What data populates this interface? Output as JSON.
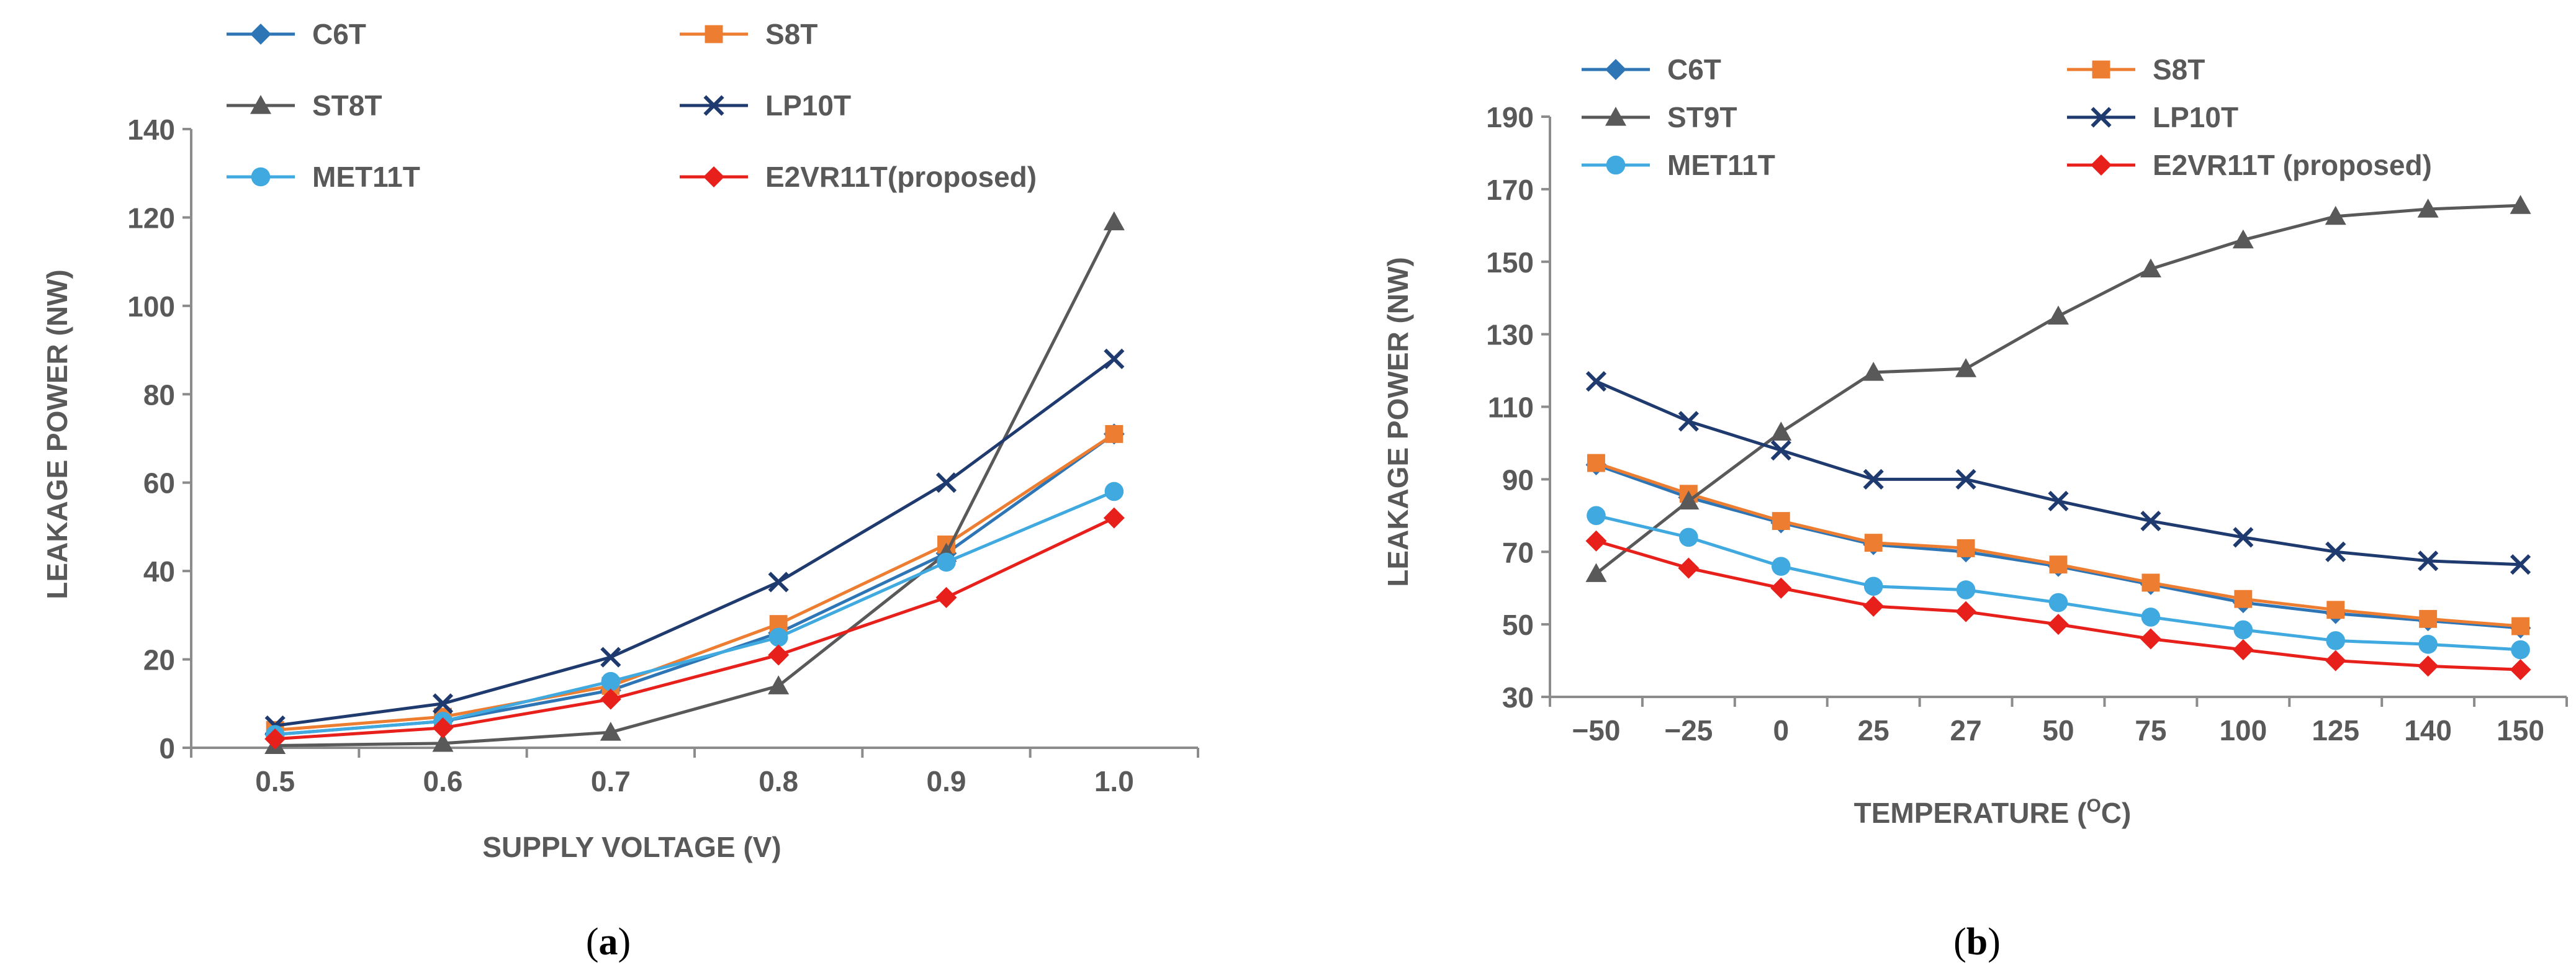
{
  "chart_data": [
    {
      "type": "line",
      "panel": "a",
      "caption": {
        "open": "(",
        "letter": "a",
        "close": ")"
      },
      "xlabel": "SUPPLY VOLTAGE (V)",
      "ylabel": "LEAKAGE POWER (NW)",
      "categories": [
        "0.5",
        "0.6",
        "0.7",
        "0.8",
        "0.9",
        "1.0"
      ],
      "yticks": [
        0,
        20,
        40,
        60,
        80,
        100,
        120,
        140
      ],
      "ylim": [
        0,
        140
      ],
      "legend": "top",
      "series": [
        {
          "name": "C6T",
          "color": "#2E75B6",
          "marker": "diamond",
          "values": [
            3,
            6,
            13,
            26,
            44,
            71
          ]
        },
        {
          "name": "S8T",
          "color": "#ED7D31",
          "marker": "square",
          "values": [
            4,
            7,
            14,
            28,
            46,
            71
          ]
        },
        {
          "name": "ST8T",
          "color": "#595959",
          "marker": "triangle",
          "values": [
            0.5,
            1,
            3.5,
            14,
            44,
            119
          ]
        },
        {
          "name": "LP10T",
          "color": "#1F3A6E",
          "marker": "x",
          "values": [
            5,
            10,
            20.5,
            37.5,
            60,
            88
          ]
        },
        {
          "name": "MET11T",
          "color": "#3FA9E0",
          "marker": "circle",
          "values": [
            3,
            6,
            15,
            25,
            42,
            58
          ]
        },
        {
          "name": "E2VR11T(proposed)",
          "color": "#E8201B",
          "marker": "diamond",
          "values": [
            2,
            4.5,
            11,
            21,
            34,
            52
          ]
        }
      ]
    },
    {
      "type": "line",
      "panel": "b",
      "caption": {
        "open": "(",
        "letter": "b",
        "close": ")"
      },
      "xlabel": {
        "main": "TEMPERATURE (",
        "sup": "O",
        "unit": "C)"
      },
      "ylabel": "LEAKAGE POWER (NW)",
      "categories": [
        "−50",
        "−25",
        "0",
        "25",
        "27",
        "50",
        "75",
        "100",
        "125",
        "140",
        "150"
      ],
      "yticks": [
        30,
        50,
        70,
        90,
        110,
        130,
        150,
        170,
        190
      ],
      "ylim": [
        30,
        190
      ],
      "legend": "top",
      "series": [
        {
          "name": "C6T",
          "color": "#2E75B6",
          "marker": "diamond",
          "values": [
            94,
            85,
            78,
            72,
            70,
            66,
            61,
            56,
            53,
            51,
            49
          ]
        },
        {
          "name": "S8T",
          "color": "#ED7D31",
          "marker": "square",
          "values": [
            94.5,
            86,
            78.5,
            72.5,
            71,
            66.5,
            61.5,
            57,
            54,
            51.5,
            49.5
          ]
        },
        {
          "name": "ST9T",
          "color": "#595959",
          "marker": "triangle",
          "values": [
            64,
            84,
            103,
            119.5,
            120.5,
            135,
            148,
            156,
            162.5,
            164.5,
            165.5
          ]
        },
        {
          "name": "LP10T",
          "color": "#1F3A6E",
          "marker": "x",
          "values": [
            117,
            106,
            98,
            90,
            90,
            84,
            78.5,
            74,
            70,
            67.5,
            66.5
          ]
        },
        {
          "name": "MET11T",
          "color": "#3FA9E0",
          "marker": "circle",
          "values": [
            80,
            74,
            66,
            60.5,
            59.5,
            56,
            52,
            48.5,
            45.5,
            44.5,
            43
          ]
        },
        {
          "name": "E2VR11T (proposed)",
          "color": "#E8201B",
          "marker": "diamond",
          "values": [
            73,
            65.5,
            60,
            55,
            53.5,
            50,
            46,
            43,
            40,
            38.5,
            37.5
          ]
        }
      ]
    }
  ]
}
